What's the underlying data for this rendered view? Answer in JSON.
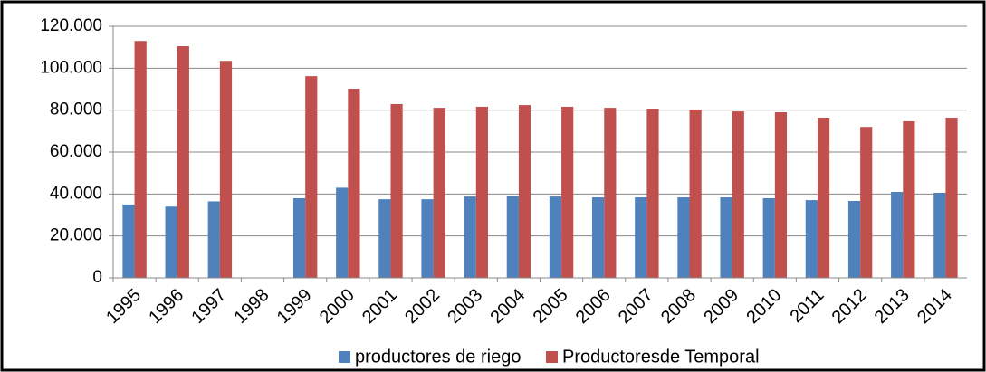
{
  "chart_data": {
    "type": "bar",
    "categories": [
      "1995",
      "1996",
      "1997",
      "1998",
      "1999",
      "2000",
      "2001",
      "2002",
      "2003",
      "2004",
      "2005",
      "2006",
      "2007",
      "2008",
      "2009",
      "2010",
      "2011",
      "2012",
      "2013",
      "2014"
    ],
    "series": [
      {
        "name": "productores de riego",
        "color": "#4f81bd",
        "values": [
          35000,
          34000,
          36500,
          null,
          38000,
          43000,
          37500,
          37500,
          38800,
          39200,
          38800,
          38400,
          38400,
          38400,
          38400,
          38000,
          37100,
          36700,
          41000,
          40600
        ]
      },
      {
        "name": "Productoresde Temporal",
        "color": "#c0504d",
        "values": [
          113000,
          110500,
          103500,
          null,
          96200,
          90200,
          82900,
          81100,
          81600,
          82400,
          81600,
          81100,
          80700,
          80300,
          79400,
          79000,
          76400,
          72000,
          74700,
          76400
        ]
      }
    ],
    "ylim": [
      0,
      120000
    ],
    "yticks": [
      0,
      {
        "value": 20000,
        "label": "20.000"
      },
      {
        "value": 40000,
        "label": "40.000"
      },
      {
        "value": 60000,
        "label": "60.000"
      },
      {
        "value": 80000,
        "label": "80.000"
      },
      {
        "value": 100000,
        "label": "100.000"
      },
      {
        "value": 120000,
        "label": "120.000"
      }
    ],
    "grid": true,
    "legend": "bottom"
  }
}
